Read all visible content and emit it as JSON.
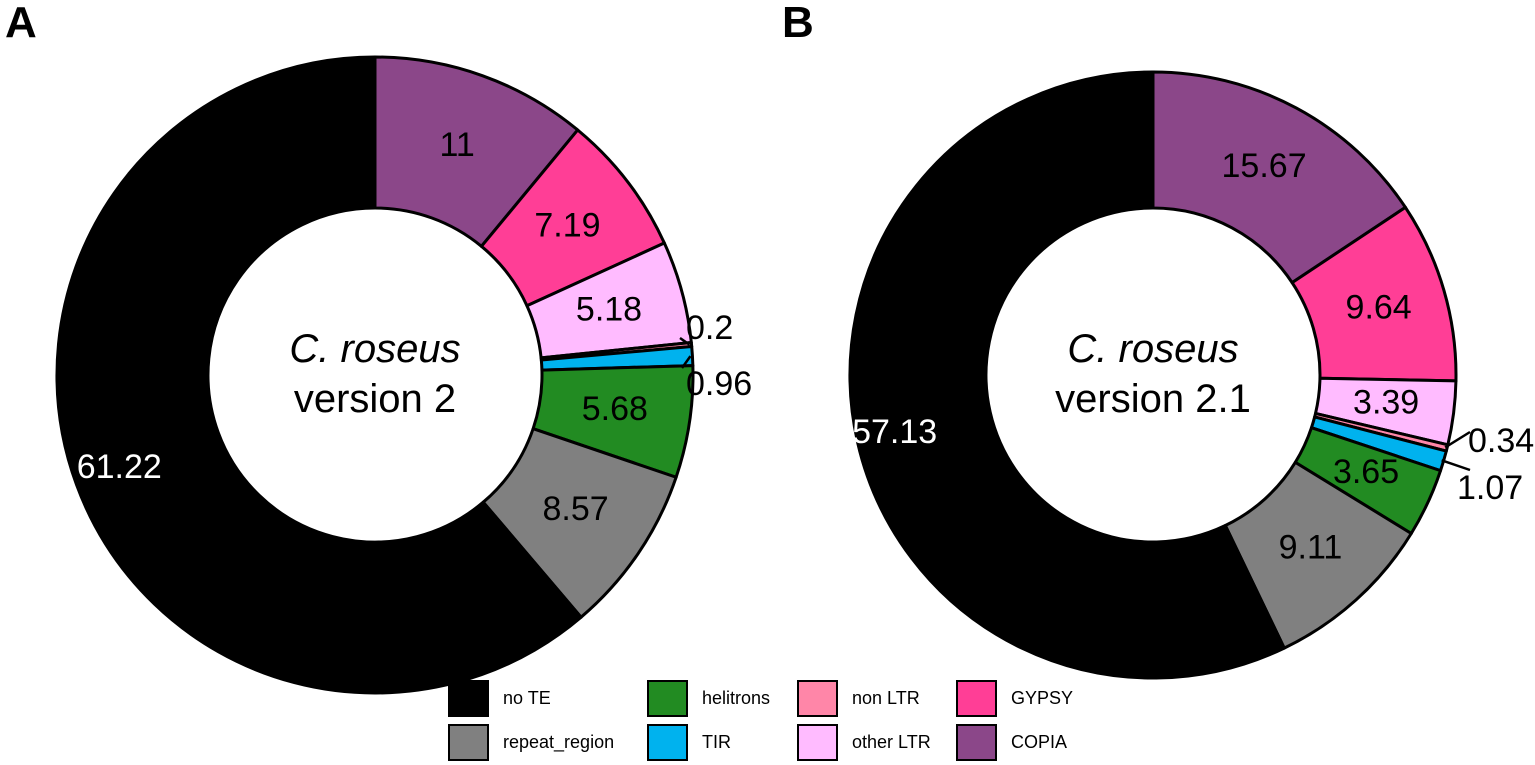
{
  "chart_data": [
    {
      "type": "pie",
      "panel": "A",
      "center_label": {
        "italic": "C. roseus",
        "plain": "version 2"
      },
      "slices": [
        {
          "category": "COPIA",
          "value": 11,
          "label": "11"
        },
        {
          "category": "GYPSY",
          "value": 7.19,
          "label": "7.19"
        },
        {
          "category": "other LTR",
          "value": 5.18,
          "label": "5.18"
        },
        {
          "category": "non LTR",
          "value": 0.2,
          "label": "0.2"
        },
        {
          "category": "TIR",
          "value": 0.96,
          "label": "0.96"
        },
        {
          "category": "helitrons",
          "value": 5.68,
          "label": "5.68"
        },
        {
          "category": "repeat_region",
          "value": 8.57,
          "label": "8.57"
        },
        {
          "category": "no TE",
          "value": 61.22,
          "label": "61.22"
        }
      ]
    },
    {
      "type": "pie",
      "panel": "B",
      "center_label": {
        "italic": "C. roseus",
        "plain": "version 2.1"
      },
      "slices": [
        {
          "category": "COPIA",
          "value": 15.67,
          "label": "15.67"
        },
        {
          "category": "GYPSY",
          "value": 9.64,
          "label": "9.64"
        },
        {
          "category": "other LTR",
          "value": 3.39,
          "label": "3.39"
        },
        {
          "category": "non LTR",
          "value": 0.34,
          "label": "0.34"
        },
        {
          "category": "TIR",
          "value": 1.07,
          "label": "1.07"
        },
        {
          "category": "helitrons",
          "value": 3.65,
          "label": "3.65"
        },
        {
          "category": "repeat_region",
          "value": 9.11,
          "label": "9.11"
        },
        {
          "category": "no TE",
          "value": 57.13,
          "label": "57.13"
        }
      ]
    }
  ],
  "legend": {
    "placement": "bottom",
    "entries": [
      {
        "name": "no TE",
        "color": "#000000"
      },
      {
        "name": "repeat_region",
        "color": "#808080"
      },
      {
        "name": "helitrons",
        "color": "#228B22"
      },
      {
        "name": "TIR",
        "color": "#00B2EE"
      },
      {
        "name": "non LTR",
        "color": "#FF86A8"
      },
      {
        "name": "other LTR",
        "color": "#FFBBFF"
      },
      {
        "name": "GYPSY",
        "color": "#FF3E96"
      },
      {
        "name": "COPIA",
        "color": "#8B4789"
      }
    ]
  }
}
